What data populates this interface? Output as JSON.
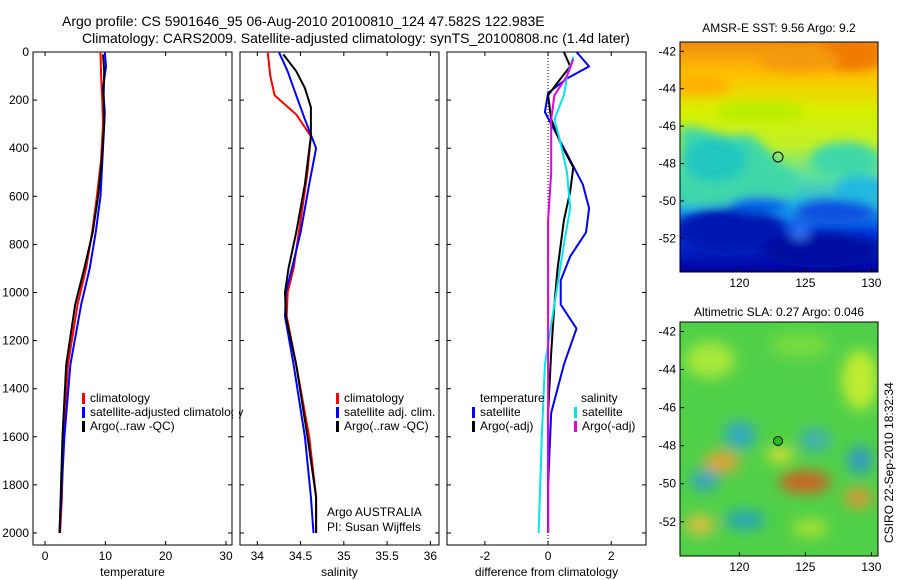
{
  "header": {
    "line1": "Argo profile: CS 5901646_95 06-Aug-2010 20100810_124 47.582S 122.983E",
    "line2": "Climatology: CARS2009. Satellite-adjusted climatology: synTS_20100808.nc (1.4d later)"
  },
  "footer_text": "CSIRO 22-Sep-2010 18:32:34",
  "colors": {
    "climatology": "#ff0000",
    "satellite": "#0000ff",
    "argo": "#000000",
    "sal_satellite": "#00e5ee",
    "sal_argo": "#e000e0"
  },
  "chart_data": [
    {
      "type": "line",
      "xlabel": "temperature",
      "xlim": [
        -2,
        31
      ],
      "xticks": [
        0,
        10,
        20,
        30
      ],
      "ylim": [
        2050,
        0
      ],
      "yticks": [
        0,
        200,
        400,
        600,
        800,
        1000,
        1200,
        1400,
        1600,
        1800,
        2000
      ],
      "legend": [
        "climatology",
        "satellite-adjusted climatology",
        "Argo(..raw -QC)"
      ],
      "series": [
        {
          "name": "climatology",
          "color": "#ff0000",
          "x": [
            9.2,
            9.3,
            9.5,
            9.6,
            9.3,
            8.6,
            7.8,
            6.8,
            5.4,
            3.8,
            3.0,
            2.8,
            2.5
          ],
          "y": [
            0,
            100,
            200,
            300,
            450,
            600,
            750,
            900,
            1050,
            1300,
            1600,
            1850,
            2000
          ]
        },
        {
          "name": "satellite-adjusted climatology",
          "color": "#0000ff",
          "x": [
            9.9,
            10.1,
            9.6,
            9.9,
            9.6,
            9.2,
            8.4,
            7.4,
            6.0,
            4.2,
            3.2,
            2.7,
            2.4
          ],
          "y": [
            0,
            60,
            150,
            250,
            400,
            600,
            750,
            900,
            1050,
            1300,
            1600,
            1850,
            2000
          ]
        },
        {
          "name": "Argo(..raw -QC)",
          "color": "#000000",
          "x": [
            9.6,
            9.8,
            9.7,
            9.8,
            9.4,
            8.8,
            7.9,
            6.5,
            5.0,
            3.5,
            2.9,
            2.6,
            2.4
          ],
          "y": [
            10,
            80,
            180,
            300,
            450,
            600,
            750,
            900,
            1050,
            1300,
            1600,
            1850,
            2000
          ]
        }
      ]
    },
    {
      "type": "line",
      "xlabel": "salinity",
      "xlim": [
        33.8,
        36.1
      ],
      "xticks": [
        34,
        34.5,
        35,
        35.5,
        36
      ],
      "ylim": [
        2050,
        0
      ],
      "yticks": [
        0,
        200,
        400,
        600,
        800,
        1000,
        1200,
        1400,
        1600,
        1800,
        2000
      ],
      "legend": [
        "climatology",
        "satellite adj. clim.",
        "Argo(..raw -QC)"
      ],
      "annotation": [
        "Argo AUSTRALIA",
        "PI: Susan Wijffels"
      ],
      "series": [
        {
          "name": "climatology",
          "color": "#ff0000",
          "x": [
            34.12,
            34.15,
            34.2,
            34.45,
            34.62,
            34.58,
            34.5,
            34.42,
            34.35,
            34.34,
            34.45,
            34.6,
            34.68,
            34.68
          ],
          "y": [
            0,
            100,
            180,
            260,
            350,
            500,
            700,
            900,
            1000,
            1100,
            1300,
            1600,
            1850,
            2000
          ]
        },
        {
          "name": "satellite adj. clim.",
          "color": "#0000ff",
          "x": [
            34.25,
            34.35,
            34.45,
            34.55,
            34.68,
            34.6,
            34.5,
            34.4,
            34.33,
            34.32,
            34.42,
            34.55,
            34.62,
            34.65
          ],
          "y": [
            0,
            80,
            180,
            280,
            400,
            550,
            750,
            900,
            1000,
            1100,
            1300,
            1600,
            1850,
            2000
          ]
        },
        {
          "name": "Argo(..raw -QC)",
          "color": "#000000",
          "x": [
            34.3,
            34.45,
            34.55,
            34.62,
            34.62,
            34.55,
            34.45,
            34.36,
            34.32,
            34.33,
            34.45,
            34.58,
            34.68,
            34.68
          ],
          "y": [
            10,
            80,
            150,
            230,
            350,
            550,
            750,
            900,
            1000,
            1100,
            1300,
            1600,
            1850,
            2000
          ]
        }
      ]
    },
    {
      "type": "line",
      "xlabel": "difference from climatology",
      "xlim": [
        -3.2,
        3.1
      ],
      "xticks": [
        -2,
        0,
        2
      ],
      "ylim": [
        2050,
        0
      ],
      "yticks": [
        0,
        200,
        400,
        600,
        800,
        1000,
        1200,
        1400,
        1600,
        1800,
        2000
      ],
      "legend": {
        "temperature_heading": "temperature",
        "salinity_heading": "salinity",
        "temperature": [
          "satellite",
          "Argo(-adj)"
        ],
        "salinity": [
          "satellite",
          "Argo(-adj)"
        ]
      },
      "series": [
        {
          "name": "temperature satellite",
          "color": "#0000ff",
          "x": [
            0.9,
            1.3,
            0.6,
            0.0,
            -0.1,
            0.3,
            0.7,
            1.1,
            1.3,
            1.2,
            0.7,
            0.4,
            0.4,
            0.9,
            0.5,
            0.1,
            0.0,
            0.0
          ],
          "y": [
            0,
            60,
            110,
            170,
            250,
            350,
            450,
            550,
            650,
            750,
            850,
            950,
            1050,
            1150,
            1300,
            1500,
            1800,
            2000
          ]
        },
        {
          "name": "temperature Argo(-adj)",
          "color": "#000000",
          "x": [
            0.5,
            0.7,
            0.4,
            0.0,
            0.1,
            0.4,
            0.8,
            0.7,
            0.5,
            0.3,
            0.2,
            0.1,
            0.0,
            0.0,
            0.0
          ],
          "y": [
            0,
            60,
            110,
            180,
            280,
            380,
            480,
            580,
            700,
            900,
            1050,
            1250,
            1500,
            1800,
            2000
          ]
        },
        {
          "name": "salinity satellite",
          "color": "#00e5ee",
          "x": [
            0.8,
            0.6,
            0.5,
            0.2,
            0.4,
            0.6,
            0.7,
            0.5,
            0.2,
            -0.1,
            -0.2,
            -0.3
          ],
          "y": [
            20,
            100,
            180,
            280,
            380,
            500,
            650,
            800,
            1050,
            1300,
            1600,
            2000
          ]
        },
        {
          "name": "salinity Argo(-adj)",
          "color": "#e000e0",
          "x": [
            0.8,
            0.6,
            0.2,
            0.1,
            0.1,
            0.0,
            0.0,
            0.0,
            0.0,
            0.0
          ],
          "y": [
            30,
            100,
            180,
            280,
            500,
            700,
            1000,
            1300,
            1700,
            2000
          ]
        }
      ]
    },
    {
      "type": "heatmap",
      "title": "AMSR-E SST: 9.56 Argo: 9.2",
      "xlim": [
        115.5,
        130.5
      ],
      "xticks": [
        120,
        125,
        130
      ],
      "ylim": [
        -53.8,
        -41.5
      ],
      "yticks": [
        -42,
        -44,
        -46,
        -48,
        -50,
        -52
      ],
      "marker": {
        "lon": 123.0,
        "lat": -47.6,
        "fill": "none"
      }
    },
    {
      "type": "heatmap",
      "title": "Altimetric SLA: 0.27 Argo: 0.046",
      "xlim": [
        115.5,
        130.5
      ],
      "xticks": [
        120,
        125,
        130
      ],
      "ylim": [
        -53.8,
        -41.5
      ],
      "yticks": [
        -42,
        -44,
        -46,
        -48,
        -50,
        -52
      ],
      "marker": {
        "lon": 123.0,
        "lat": -47.6,
        "fill": "#22bb22"
      }
    }
  ]
}
